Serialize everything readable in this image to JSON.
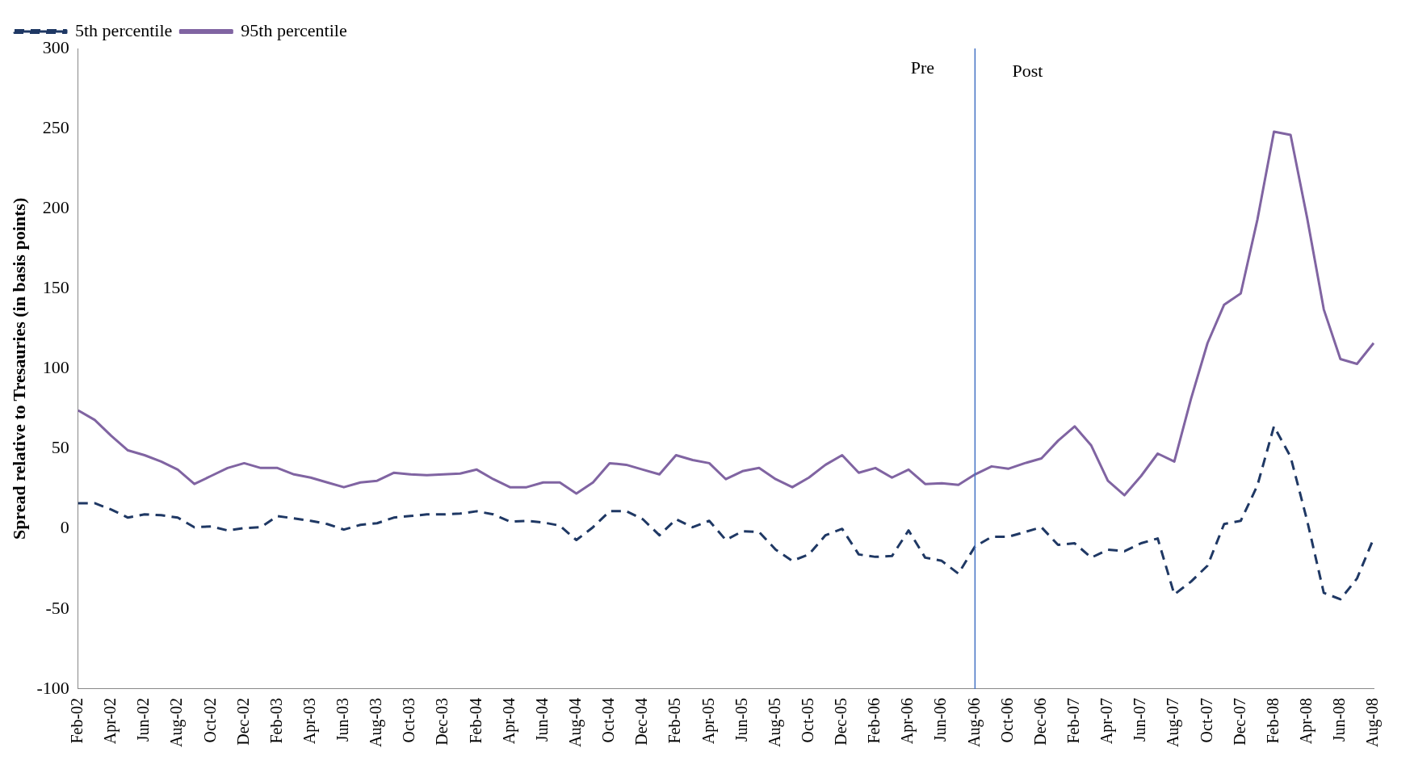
{
  "chart_data": {
    "type": "line",
    "ylabel": "Spread relative to Tresauries (in basis points)",
    "categories": [
      "Feb-02",
      null,
      "Apr-02",
      null,
      "Jun-02",
      null,
      "Aug-02",
      null,
      "Oct-02",
      null,
      "Dec-02",
      null,
      "Feb-03",
      null,
      "Apr-03",
      null,
      "Jun-03",
      null,
      "Aug-03",
      null,
      "Oct-03",
      null,
      "Dec-03",
      null,
      "Feb-04",
      null,
      "Apr-04",
      null,
      "Jun-04",
      null,
      "Aug-04",
      null,
      "Oct-04",
      null,
      "Dec-04",
      null,
      "Feb-05",
      null,
      "Apr-05",
      null,
      "Jun-05",
      null,
      "Aug-05",
      null,
      "Oct-05",
      null,
      "Dec-05",
      null,
      "Feb-06",
      null,
      "Apr-06",
      null,
      "Jun-06",
      null,
      "Aug-06",
      null,
      "Oct-06",
      null,
      "Dec-06",
      null,
      "Feb-07",
      null,
      "Apr-07",
      null,
      "Jun-07",
      null,
      "Aug-07",
      null,
      "Oct-07",
      null,
      "Dec-07",
      null,
      "Feb-08",
      null,
      "Apr-08",
      null,
      "Jun-08",
      null,
      "Aug-08"
    ],
    "series": [
      {
        "name": "5th percentile",
        "color": "#1f3864",
        "line_style": "dashed",
        "values": [
          16,
          16,
          12,
          7,
          9,
          8.5,
          7,
          1,
          1.5,
          -1,
          0.5,
          1,
          8,
          6.5,
          5,
          3,
          -0.5,
          2.5,
          3.5,
          7,
          8,
          9,
          9,
          9.5,
          11,
          9,
          4.5,
          5,
          4,
          2,
          -7,
          1,
          11,
          11,
          6,
          -4,
          6,
          1,
          5,
          -7,
          -1.5,
          -2,
          -13,
          -20,
          -16,
          -4,
          0,
          -16,
          -17.5,
          -17,
          -1,
          -18,
          -20,
          -28,
          -11,
          -5,
          -5,
          -2,
          1,
          -10,
          -9,
          -18,
          -13,
          -14,
          -9,
          -6,
          -41,
          -33,
          -23,
          3,
          5,
          27,
          64,
          45,
          5,
          -40,
          -44,
          -31,
          -6
        ]
      },
      {
        "name": "95th percentile",
        "color": "#8064a2",
        "line_style": "solid",
        "values": [
          74,
          68,
          58,
          49,
          46,
          42,
          37,
          28,
          33,
          38,
          41,
          38,
          38,
          34,
          32,
          29,
          26,
          29,
          30,
          35,
          34,
          33.5,
          34,
          34.5,
          37,
          31,
          26,
          26,
          29,
          29,
          22,
          29,
          41,
          40,
          37,
          34,
          46,
          43,
          41,
          31,
          36,
          38,
          31,
          26,
          32,
          40,
          46,
          35,
          38,
          32,
          37,
          28,
          28.5,
          27.5,
          34,
          39,
          37.5,
          41,
          44,
          55,
          64,
          52,
          30,
          21,
          33,
          47,
          42,
          81,
          116,
          140,
          147,
          193,
          248,
          246,
          194,
          137,
          106,
          103,
          116
        ]
      }
    ],
    "ylim": [
      -100,
      300
    ],
    "yticks": [
      -100,
      -50,
      0,
      50,
      100,
      150,
      200,
      250,
      300
    ],
    "grid": false,
    "legend": "top left",
    "marker": "none",
    "ref_lines": [
      {
        "axis": "x",
        "value": "Aug-06",
        "color": "#4472c4"
      }
    ],
    "annotations": [
      "Pre",
      "Post"
    ]
  }
}
